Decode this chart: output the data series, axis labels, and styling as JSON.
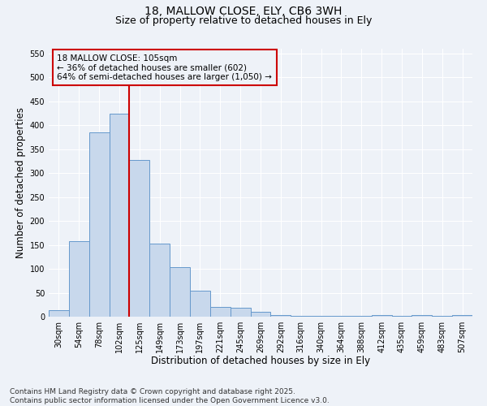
{
  "title_line1": "18, MALLOW CLOSE, ELY, CB6 3WH",
  "title_line2": "Size of property relative to detached houses in Ely",
  "xlabel": "Distribution of detached houses by size in Ely",
  "ylabel": "Number of detached properties",
  "bar_color": "#c8d8ec",
  "bar_edge_color": "#6699cc",
  "categories": [
    "30sqm",
    "54sqm",
    "78sqm",
    "102sqm",
    "125sqm",
    "149sqm",
    "173sqm",
    "197sqm",
    "221sqm",
    "245sqm",
    "269sqm",
    "292sqm",
    "316sqm",
    "340sqm",
    "364sqm",
    "388sqm",
    "412sqm",
    "435sqm",
    "459sqm",
    "483sqm",
    "507sqm"
  ],
  "values": [
    13,
    157,
    385,
    425,
    328,
    153,
    103,
    55,
    20,
    18,
    10,
    4,
    1,
    1,
    1,
    1,
    3,
    1,
    3,
    1,
    3
  ],
  "ylim": [
    0,
    560
  ],
  "yticks": [
    0,
    50,
    100,
    150,
    200,
    250,
    300,
    350,
    400,
    450,
    500,
    550
  ],
  "vline_index": 3,
  "vline_color": "#cc0000",
  "annotation_text": "18 MALLOW CLOSE: 105sqm\n← 36% of detached houses are smaller (602)\n64% of semi-detached houses are larger (1,050) →",
  "annotation_box_color": "#cc0000",
  "background_color": "#eef2f8",
  "grid_color": "#ffffff",
  "title1_fontsize": 10,
  "title2_fontsize": 9,
  "label_fontsize": 8.5,
  "tick_fontsize": 7,
  "annot_fontsize": 7.5,
  "footnote_fontsize": 6.5,
  "footnote": "Contains HM Land Registry data © Crown copyright and database right 2025.\nContains public sector information licensed under the Open Government Licence v3.0."
}
